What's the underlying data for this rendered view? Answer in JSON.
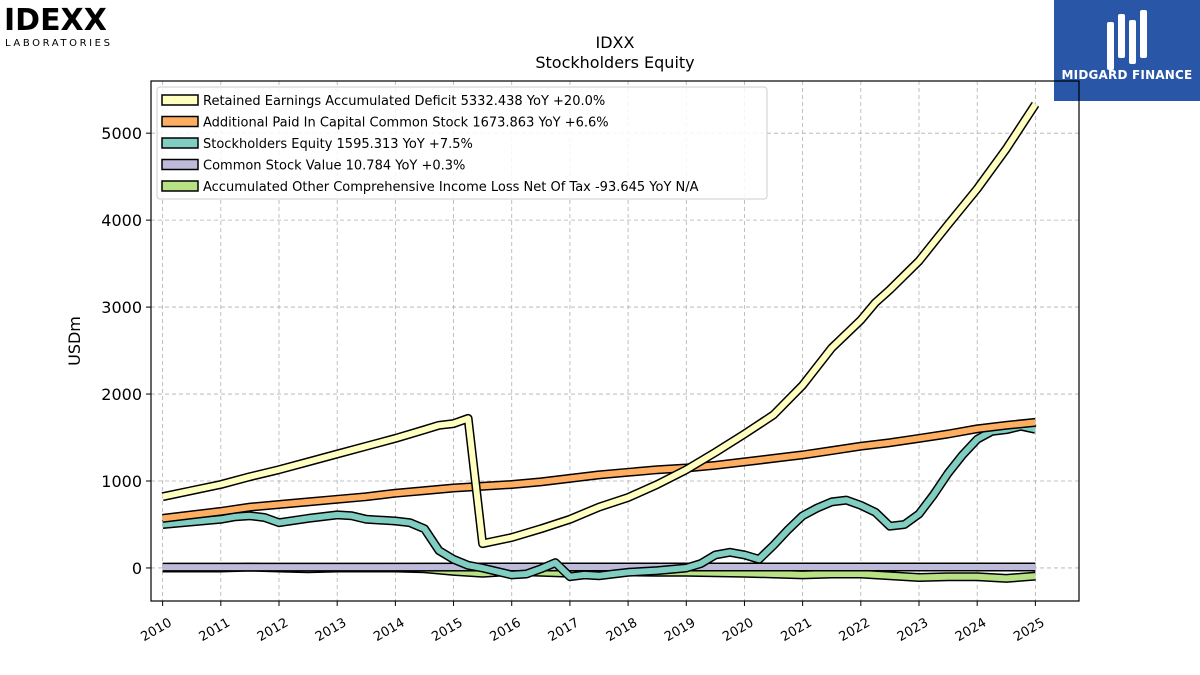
{
  "logos": {
    "left": {
      "wordmark": "IDEXX",
      "subtitle": "LABORATORIES"
    },
    "right": {
      "brand": "MIDGARD FINANCE",
      "color": "#2a56a8"
    }
  },
  "chart_data": {
    "type": "line",
    "title": "IDXX",
    "subtitle": "Stockholders  Equity",
    "ylabel": "USDm",
    "xlabel": "",
    "xlim": [
      2009.8,
      2025.75
    ],
    "ylim": [
      -380,
      5600
    ],
    "yticks": [
      0,
      1000,
      2000,
      3000,
      4000,
      5000
    ],
    "xticks": [
      2010,
      2011,
      2012,
      2013,
      2014,
      2015,
      2016,
      2017,
      2018,
      2019,
      2020,
      2021,
      2022,
      2023,
      2024,
      2025
    ],
    "grid": true,
    "legend_position": "top-left",
    "series": [
      {
        "name": "Retained Earnings Accumulated Deficit  5332.438 YoY +20.0%",
        "color": "#ffffbf",
        "points": [
          [
            2010,
            820
          ],
          [
            2010.5,
            890
          ],
          [
            2011,
            960
          ],
          [
            2011.5,
            1050
          ],
          [
            2012,
            1130
          ],
          [
            2012.5,
            1220
          ],
          [
            2013,
            1310
          ],
          [
            2013.5,
            1400
          ],
          [
            2014,
            1490
          ],
          [
            2014.5,
            1590
          ],
          [
            2014.75,
            1640
          ],
          [
            2015,
            1660
          ],
          [
            2015.25,
            1720
          ],
          [
            2015.5,
            280
          ],
          [
            2016,
            350
          ],
          [
            2016.5,
            450
          ],
          [
            2017,
            560
          ],
          [
            2017.5,
            700
          ],
          [
            2018,
            810
          ],
          [
            2018.5,
            960
          ],
          [
            2019,
            1130
          ],
          [
            2019.5,
            1330
          ],
          [
            2020,
            1540
          ],
          [
            2020.5,
            1760
          ],
          [
            2021,
            2100
          ],
          [
            2021.5,
            2530
          ],
          [
            2022,
            2850
          ],
          [
            2022.25,
            3050
          ],
          [
            2022.5,
            3200
          ],
          [
            2023,
            3530
          ],
          [
            2023.5,
            3950
          ],
          [
            2024,
            4360
          ],
          [
            2024.5,
            4820
          ],
          [
            2025,
            5332
          ]
        ]
      },
      {
        "name": "Additional Paid In Capital Common Stock  1673.863 YoY +6.6%",
        "color": "#fdae61",
        "points": [
          [
            2010,
            570
          ],
          [
            2010.5,
            610
          ],
          [
            2011,
            650
          ],
          [
            2011.5,
            700
          ],
          [
            2012,
            730
          ],
          [
            2012.5,
            760
          ],
          [
            2013,
            790
          ],
          [
            2013.5,
            820
          ],
          [
            2014,
            860
          ],
          [
            2014.5,
            890
          ],
          [
            2015,
            920
          ],
          [
            2015.5,
            940
          ],
          [
            2016,
            960
          ],
          [
            2016.5,
            990
          ],
          [
            2017,
            1030
          ],
          [
            2017.5,
            1070
          ],
          [
            2018,
            1100
          ],
          [
            2018.5,
            1130
          ],
          [
            2019,
            1150
          ],
          [
            2019.5,
            1180
          ],
          [
            2020,
            1220
          ],
          [
            2020.5,
            1260
          ],
          [
            2021,
            1300
          ],
          [
            2021.5,
            1350
          ],
          [
            2022,
            1400
          ],
          [
            2022.5,
            1440
          ],
          [
            2023,
            1490
          ],
          [
            2023.5,
            1540
          ],
          [
            2024,
            1600
          ],
          [
            2024.5,
            1640
          ],
          [
            2025,
            1674
          ]
        ]
      },
      {
        "name": "Stockholders Equity  1595.313 YoY +7.5%",
        "color": "#80cdc1",
        "points": [
          [
            2010,
            500
          ],
          [
            2010.5,
            530
          ],
          [
            2011,
            560
          ],
          [
            2011.25,
            590
          ],
          [
            2011.5,
            600
          ],
          [
            2011.75,
            580
          ],
          [
            2012,
            520
          ],
          [
            2012.5,
            570
          ],
          [
            2013,
            610
          ],
          [
            2013.25,
            600
          ],
          [
            2013.5,
            560
          ],
          [
            2014,
            540
          ],
          [
            2014.25,
            520
          ],
          [
            2014.5,
            450
          ],
          [
            2014.75,
            200
          ],
          [
            2015,
            100
          ],
          [
            2015.25,
            30
          ],
          [
            2015.5,
            0
          ],
          [
            2016,
            -80
          ],
          [
            2016.25,
            -70
          ],
          [
            2016.5,
            -10
          ],
          [
            2016.75,
            60
          ],
          [
            2017,
            -100
          ],
          [
            2017.25,
            -80
          ],
          [
            2017.5,
            -90
          ],
          [
            2017.75,
            -70
          ],
          [
            2018,
            -50
          ],
          [
            2018.5,
            -30
          ],
          [
            2019,
            0
          ],
          [
            2019.25,
            50
          ],
          [
            2019.5,
            150
          ],
          [
            2019.75,
            180
          ],
          [
            2020,
            150
          ],
          [
            2020.25,
            100
          ],
          [
            2020.5,
            260
          ],
          [
            2020.75,
            440
          ],
          [
            2021,
            600
          ],
          [
            2021.25,
            690
          ],
          [
            2021.5,
            760
          ],
          [
            2021.75,
            780
          ],
          [
            2022,
            720
          ],
          [
            2022.25,
            640
          ],
          [
            2022.5,
            480
          ],
          [
            2022.75,
            500
          ],
          [
            2023,
            620
          ],
          [
            2023.25,
            840
          ],
          [
            2023.5,
            1090
          ],
          [
            2023.75,
            1300
          ],
          [
            2024,
            1480
          ],
          [
            2024.25,
            1570
          ],
          [
            2024.5,
            1590
          ],
          [
            2024.75,
            1630
          ],
          [
            2025,
            1595
          ]
        ]
      },
      {
        "name": "Common Stock Value  10.784 YoY +0.3%",
        "color": "#bebada",
        "points": [
          [
            2010,
            10
          ],
          [
            2025,
            10.784
          ]
        ]
      },
      {
        "name": "Accumulated Other Comprehensive Income Loss Net Of Tax  -93.645 YoY N/A",
        "color": "#b8e186",
        "points": [
          [
            2010,
            0
          ],
          [
            2010.5,
            0
          ],
          [
            2011,
            0
          ],
          [
            2011.5,
            10
          ],
          [
            2012,
            0
          ],
          [
            2012.5,
            -10
          ],
          [
            2013,
            0
          ],
          [
            2013.5,
            0
          ],
          [
            2014,
            0
          ],
          [
            2014.5,
            -10
          ],
          [
            2015,
            -40
          ],
          [
            2015.5,
            -60
          ],
          [
            2016,
            -40
          ],
          [
            2016.5,
            -50
          ],
          [
            2017,
            -60
          ],
          [
            2017.5,
            -50
          ],
          [
            2018,
            -45
          ],
          [
            2018.5,
            -50
          ],
          [
            2019,
            -50
          ],
          [
            2019.5,
            -55
          ],
          [
            2020,
            -60
          ],
          [
            2020.5,
            -70
          ],
          [
            2021,
            -80
          ],
          [
            2021.5,
            -70
          ],
          [
            2022,
            -70
          ],
          [
            2022.5,
            -90
          ],
          [
            2023,
            -110
          ],
          [
            2023.5,
            -100
          ],
          [
            2024,
            -100
          ],
          [
            2024.5,
            -120
          ],
          [
            2025,
            -94
          ]
        ]
      }
    ]
  }
}
